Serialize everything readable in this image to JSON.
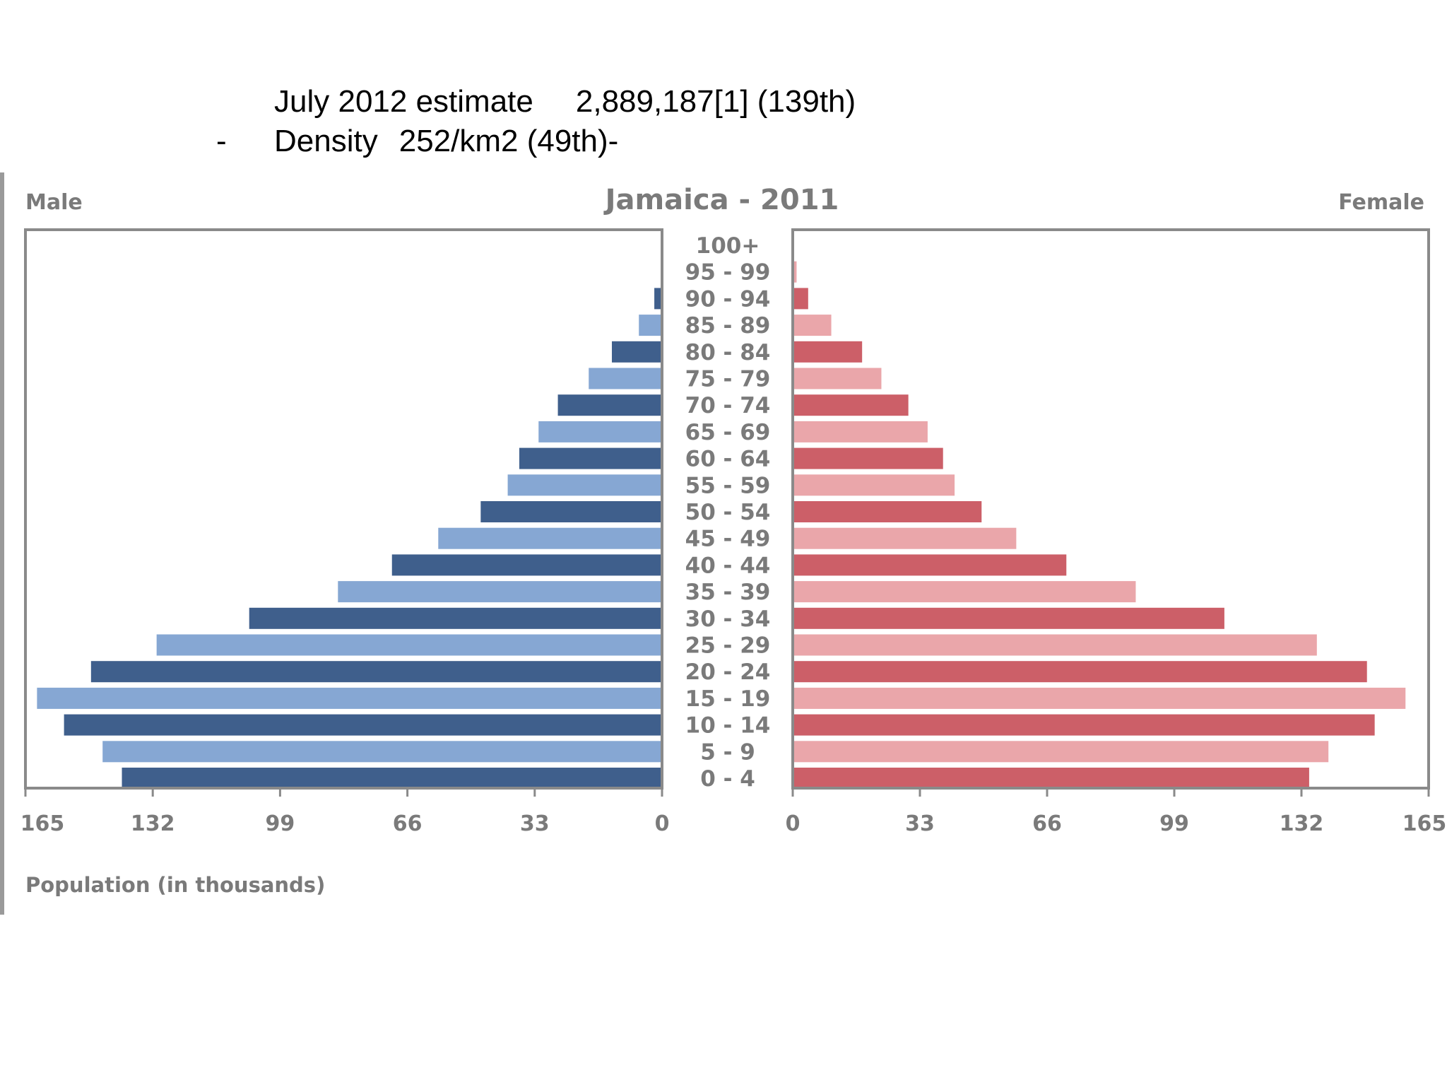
{
  "header": {
    "estimate_label": "July 2012 estimate",
    "estimate_value": "2,889,187[1] (139th)",
    "dash": "-",
    "density_label": "Density",
    "density_value": "252/km2 (49th)-"
  },
  "chart_data": {
    "type": "bar",
    "title": "Jamaica - 2011",
    "left_label": "Male",
    "right_label": "Female",
    "xlabel": "Population (in thousands)",
    "xlim": [
      0,
      165
    ],
    "ticks": [
      "165",
      "132",
      "99",
      "66",
      "33",
      "0"
    ],
    "ticks_right": [
      "0",
      "33",
      "66",
      "99",
      "132",
      "165"
    ],
    "categories": [
      "0 - 4",
      "5 - 9",
      "10 - 14",
      "15 - 19",
      "20 - 24",
      "25 - 29",
      "30 - 34",
      "35 - 39",
      "40 - 44",
      "45 - 49",
      "50 - 54",
      "55 - 59",
      "60 - 64",
      "65 - 69",
      "70 - 74",
      "75 - 79",
      "80 - 84",
      "85 - 89",
      "90 - 94",
      "95 - 99",
      "100+"
    ],
    "series": [
      {
        "name": "Male",
        "values": [
          140,
          145,
          155,
          162,
          148,
          131,
          107,
          84,
          70,
          58,
          47,
          40,
          37,
          32,
          27,
          19,
          13,
          6,
          2,
          0.3,
          0.1
        ]
      },
      {
        "name": "Female",
        "values": [
          134,
          139,
          151,
          159,
          149,
          136,
          112,
          89,
          71,
          58,
          49,
          42,
          39,
          35,
          30,
          23,
          18,
          10,
          4,
          1,
          0.3
        ]
      }
    ],
    "colors": {
      "male_dark": "#3f5f8c",
      "male_light": "#86a7d3",
      "female_dark": "#cc5f68",
      "female_light": "#eaa6aa",
      "frame": "#8a8a8a"
    },
    "grid": false
  }
}
